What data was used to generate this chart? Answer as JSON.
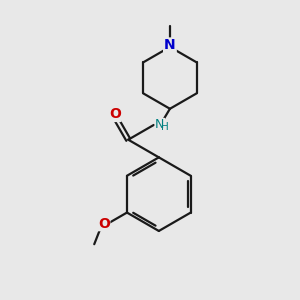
{
  "background_color": "#e8e8e8",
  "bond_color": "#1a1a1a",
  "N_color": "#0000cc",
  "O_color": "#cc0000",
  "NH_color": "#008080",
  "line_width": 1.6,
  "font_size_atom": 9,
  "fig_size": [
    3.0,
    3.0
  ],
  "dpi": 100,
  "xlim": [
    0,
    10
  ],
  "ylim": [
    0,
    10
  ]
}
